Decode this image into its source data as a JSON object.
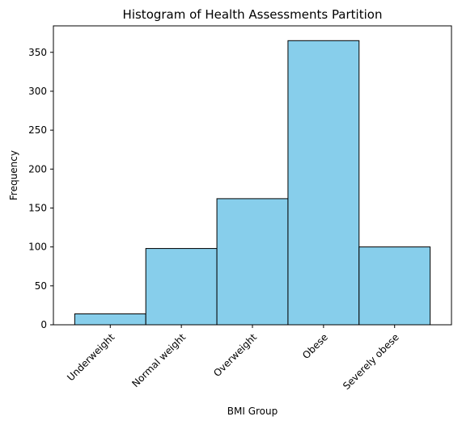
{
  "chart_data": {
    "type": "bar",
    "title": "Histogram of Health Assessments Partition",
    "xlabel": "BMI Group",
    "ylabel": "Frequency",
    "categories": [
      "Underweight",
      "Normal weight",
      "Overweight",
      "Obese",
      "Severely obese"
    ],
    "values": [
      14,
      98,
      162,
      365,
      100
    ],
    "ylim": [
      0,
      384
    ],
    "yticks": [
      0,
      50,
      100,
      150,
      200,
      250,
      300,
      350
    ],
    "grid": false,
    "bar_color": "#87CEEB",
    "edge_color": "#000000"
  }
}
